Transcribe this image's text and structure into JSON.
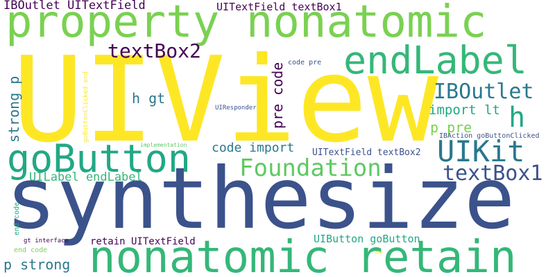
{
  "palette": {
    "yellow": "#fde725",
    "lime": "#7ad151",
    "green": "#22a884",
    "teal": "#2a788e",
    "blue": "#3b528b",
    "purple": "#440154",
    "light_green": "#5ec962",
    "mid_green": "#35b779"
  },
  "words": {
    "uiview": "UIView",
    "synthesize": "synthesize",
    "property_nonatomic": "property nonatomic",
    "nonatomic_retain": "nonatomic retain",
    "endlabel": "endLabel",
    "gobutton": "goButton",
    "uikit": "UIKit",
    "foundation": "Foundation",
    "iboutlet": "IBOutlet",
    "textbox2": "textBox2",
    "textbox1": "textBox1",
    "h": "h",
    "iboutlet_uitextfield": "IBOutlet UITextField",
    "uitextfield_textbox1": "UITextField textBox1",
    "pre_code": "pre code",
    "strong_p": "strong p",
    "h_gt": "h gt",
    "import_lt": "import lt",
    "p_pre": "p pre",
    "code_import": "code import",
    "uilabel_endlabel": "UILabel endLabel",
    "uitextfield_textbox2": "UITextField textBox2",
    "code_pre": "code pre",
    "ibaction_gobuttonclicked": "IBAction goButtonClicked",
    "gobuttonclicked_end": "goButtonClicked end",
    "uiresponder": "UIResponder",
    "implementation": "implementation",
    "end_code": "end code",
    "retain_uitextfield": "retain UITextField",
    "uibutton_gobutton": "UIButton goButton",
    "gt_interface": "gt interface",
    "end_code_2": "end code",
    "p_strong": "p strong",
    "amp": "amp"
  }
}
